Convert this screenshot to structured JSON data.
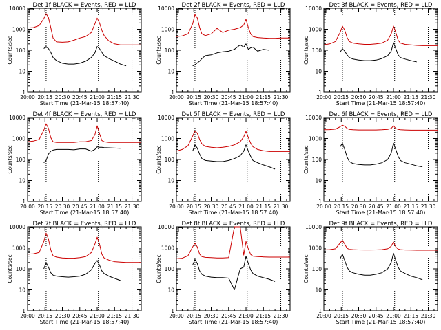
{
  "common": {
    "ylabel": "Counts/sec",
    "xlabel": "Start Time (21-Mar-15 18:57:40)",
    "ytick_labels": [
      "1",
      "10",
      "100",
      "1000",
      "10000"
    ],
    "ytick_values": [
      1,
      10,
      100,
      1000,
      10000
    ],
    "xtick_labels": [
      "20:00",
      "20:15",
      "20:30",
      "20:45",
      "21:00",
      "21:15",
      "21:30"
    ],
    "xtick_values": [
      0,
      15,
      30,
      45,
      60,
      75,
      90
    ],
    "xlim": [
      0,
      98
    ],
    "ylim": [
      1,
      10000
    ],
    "yscale": "log",
    "vlines": [
      16,
      61,
      90
    ],
    "colors": {
      "events": "#000000",
      "lld": "#cc0000"
    }
  },
  "chart_data": [
    {
      "type": "line",
      "title": "Det 1f BLACK = Events, RED = LLD",
      "x": [
        0,
        5,
        10,
        14,
        16,
        18,
        20,
        22,
        25,
        30,
        35,
        40,
        45,
        50,
        55,
        58,
        60,
        62,
        64,
        66,
        70,
        75,
        80,
        85,
        90,
        95,
        98
      ],
      "series": [
        {
          "name": "RED",
          "color": "#cc0000",
          "values": [
            1150,
            1200,
            1500,
            3200,
            5500,
            3600,
            1200,
            380,
            250,
            240,
            250,
            300,
            380,
            450,
            700,
            1800,
            3400,
            2000,
            900,
            500,
            280,
            200,
            180,
            180,
            180,
            180,
            180
          ]
        },
        {
          "name": "BLACK",
          "color": "#000000",
          "values": [
            null,
            null,
            null,
            120,
            150,
            120,
            80,
            45,
            32,
            24,
            22,
            22,
            24,
            30,
            45,
            75,
            150,
            120,
            80,
            55,
            40,
            30,
            22,
            18,
            null,
            null,
            null
          ]
        }
      ]
    },
    {
      "type": "line",
      "title": "Det 2f BLACK = Events, RED = LLD",
      "x": [
        0,
        5,
        10,
        14,
        16,
        18,
        20,
        22,
        25,
        30,
        35,
        40,
        45,
        50,
        55,
        58,
        60,
        62,
        64,
        66,
        70,
        75,
        80,
        85,
        90,
        95,
        98
      ],
      "series": [
        {
          "name": "RED",
          "color": "#cc0000",
          "values": [
            450,
            480,
            600,
            1800,
            5000,
            3500,
            1200,
            600,
            500,
            600,
            1100,
            700,
            900,
            1000,
            1200,
            1600,
            3000,
            1200,
            600,
            450,
            400,
            380,
            370,
            370,
            380,
            380,
            380
          ]
        },
        {
          "name": "BLACK",
          "color": "#000000",
          "values": [
            null,
            null,
            null,
            18,
            20,
            25,
            30,
            40,
            55,
            60,
            75,
            85,
            90,
            110,
            180,
            140,
            200,
            110,
            130,
            140,
            90,
            110,
            100,
            null,
            null,
            null,
            null
          ]
        }
      ]
    },
    {
      "type": "line",
      "title": "Det 3f BLACK = Events, RED = LLD",
      "x": [
        0,
        5,
        10,
        14,
        16,
        18,
        20,
        22,
        25,
        30,
        35,
        40,
        45,
        50,
        55,
        58,
        60,
        62,
        64,
        66,
        70,
        75,
        80,
        85,
        90,
        95,
        98
      ],
      "series": [
        {
          "name": "RED",
          "color": "#cc0000",
          "values": [
            180,
            200,
            260,
            700,
            1400,
            900,
            400,
            260,
            220,
            200,
            190,
            190,
            200,
            220,
            300,
            600,
            1400,
            700,
            300,
            220,
            190,
            180,
            170,
            165,
            165,
            165,
            165
          ]
        },
        {
          "name": "BLACK",
          "color": "#000000",
          "values": [
            null,
            null,
            null,
            80,
            120,
            90,
            60,
            45,
            38,
            34,
            32,
            32,
            34,
            40,
            55,
            90,
            230,
            120,
            60,
            45,
            38,
            32,
            28,
            null,
            null,
            null,
            null
          ]
        }
      ]
    },
    {
      "type": "line",
      "title": "Det 4f BLACK = Events, RED = LLD",
      "x": [
        0,
        5,
        10,
        14,
        16,
        18,
        20,
        22,
        25,
        30,
        35,
        40,
        45,
        50,
        55,
        58,
        60,
        62,
        64,
        66,
        70,
        75,
        80,
        85,
        90,
        95,
        98
      ],
      "series": [
        {
          "name": "RED",
          "color": "#cc0000",
          "values": [
            700,
            750,
            900,
            2500,
            5000,
            3000,
            1100,
            700,
            650,
            650,
            650,
            650,
            700,
            700,
            800,
            1500,
            4000,
            1700,
            800,
            700,
            650,
            650,
            650,
            650,
            650,
            650,
            650
          ]
        },
        {
          "name": "BLACK",
          "color": "#000000",
          "values": [
            null,
            null,
            null,
            70,
            90,
            180,
            250,
            280,
            300,
            300,
            300,
            290,
            320,
            320,
            250,
            300,
            400,
            380,
            380,
            370,
            360,
            350,
            340,
            null,
            null,
            null,
            null
          ]
        }
      ]
    },
    {
      "type": "line",
      "title": "Det 5f BLACK = Events, RED = LLD",
      "x": [
        0,
        5,
        10,
        14,
        16,
        18,
        20,
        22,
        25,
        30,
        35,
        40,
        45,
        50,
        55,
        58,
        60,
        62,
        64,
        66,
        70,
        75,
        80,
        85,
        90,
        95,
        98
      ],
      "series": [
        {
          "name": "RED",
          "color": "#cc0000",
          "values": [
            250,
            300,
            450,
            1300,
            2300,
            1800,
            900,
            550,
            420,
            380,
            360,
            380,
            420,
            500,
            700,
            1200,
            2200,
            1100,
            600,
            400,
            300,
            260,
            240,
            240,
            240,
            240,
            240
          ]
        },
        {
          "name": "BLACK",
          "color": "#000000",
          "values": [
            null,
            null,
            null,
            250,
            500,
            350,
            180,
            110,
            90,
            85,
            80,
            80,
            90,
            110,
            150,
            250,
            500,
            250,
            140,
            90,
            70,
            55,
            45,
            35,
            null,
            null,
            null
          ]
        }
      ]
    },
    {
      "type": "line",
      "title": "Det 6f BLACK = Events, RED = LLD",
      "x": [
        0,
        5,
        10,
        14,
        16,
        18,
        20,
        22,
        25,
        30,
        35,
        40,
        45,
        50,
        55,
        58,
        60,
        62,
        64,
        66,
        70,
        75,
        80,
        85,
        90,
        95,
        98
      ],
      "series": [
        {
          "name": "RED",
          "color": "#cc0000",
          "values": [
            2600,
            2650,
            2800,
            3600,
            4300,
            3800,
            3000,
            2700,
            2600,
            2550,
            2550,
            2550,
            2550,
            2600,
            2700,
            3000,
            4000,
            3000,
            2700,
            2600,
            2550,
            2500,
            2500,
            2500,
            2500,
            2500,
            2500
          ]
        },
        {
          "name": "BLACK",
          "color": "#000000",
          "values": [
            null,
            null,
            null,
            400,
            600,
            300,
            130,
            80,
            65,
            58,
            55,
            55,
            60,
            70,
            100,
            200,
            600,
            300,
            140,
            90,
            70,
            60,
            50,
            45,
            null,
            null,
            null
          ]
        }
      ]
    },
    {
      "type": "line",
      "title": "Det 7f BLACK = Events, RED = LLD",
      "x": [
        0,
        5,
        10,
        14,
        16,
        18,
        20,
        22,
        25,
        30,
        35,
        40,
        45,
        50,
        55,
        58,
        60,
        62,
        64,
        66,
        70,
        75,
        80,
        85,
        90,
        95,
        98
      ],
      "series": [
        {
          "name": "RED",
          "color": "#cc0000",
          "values": [
            500,
            520,
            600,
            2000,
            5000,
            2600,
            800,
            420,
            360,
            330,
            320,
            320,
            340,
            380,
            600,
            1500,
            3200,
            1500,
            500,
            330,
            260,
            220,
            210,
            200,
            200,
            200,
            200
          ]
        },
        {
          "name": "BLACK",
          "color": "#000000",
          "values": [
            null,
            null,
            null,
            100,
            200,
            120,
            65,
            50,
            45,
            42,
            40,
            42,
            45,
            55,
            90,
            180,
            250,
            150,
            80,
            60,
            45,
            35,
            28,
            null,
            null,
            null,
            null
          ]
        }
      ]
    },
    {
      "type": "line",
      "title": "Det 8f BLACK = Events, RED = LLD",
      "x": [
        0,
        5,
        10,
        14,
        16,
        18,
        20,
        22,
        25,
        30,
        35,
        40,
        45,
        50,
        55,
        58,
        60,
        62,
        64,
        66,
        70,
        75,
        80,
        85,
        90,
        95,
        98
      ],
      "series": [
        {
          "name": "RED",
          "color": "#cc0000",
          "values": [
            300,
            320,
            420,
            1100,
            1700,
            1100,
            500,
            380,
            350,
            340,
            330,
            330,
            340,
            10000,
            10000,
            450,
            2000,
            900,
            480,
            400,
            380,
            370,
            360,
            360,
            360,
            360,
            360
          ]
        },
        {
          "name": "BLACK",
          "color": "#000000",
          "values": [
            null,
            null,
            null,
            150,
            280,
            180,
            80,
            55,
            45,
            40,
            38,
            38,
            36,
            10,
            100,
            120,
            400,
            180,
            90,
            60,
            45,
            38,
            32,
            25,
            null,
            null,
            null
          ]
        }
      ]
    },
    {
      "type": "line",
      "title": "Det 9f BLACK = Events, RED = LLD",
      "x": [
        0,
        5,
        10,
        14,
        16,
        18,
        20,
        22,
        25,
        30,
        35,
        40,
        45,
        50,
        55,
        58,
        60,
        62,
        64,
        66,
        70,
        75,
        80,
        85,
        90,
        95,
        98
      ],
      "series": [
        {
          "name": "RED",
          "color": "#cc0000",
          "values": [
            800,
            820,
            900,
            1700,
            2300,
            1500,
            950,
            850,
            820,
            800,
            790,
            790,
            800,
            820,
            900,
            1200,
            1900,
            1100,
            880,
            820,
            790,
            780,
            770,
            770,
            770,
            770,
            770
          ]
        },
        {
          "name": "BLACK",
          "color": "#000000",
          "values": [
            null,
            null,
            null,
            300,
            500,
            250,
            120,
            80,
            65,
            55,
            50,
            50,
            55,
            65,
            100,
            200,
            550,
            250,
            120,
            80,
            60,
            45,
            38,
            30,
            null,
            null,
            null
          ]
        }
      ]
    }
  ]
}
